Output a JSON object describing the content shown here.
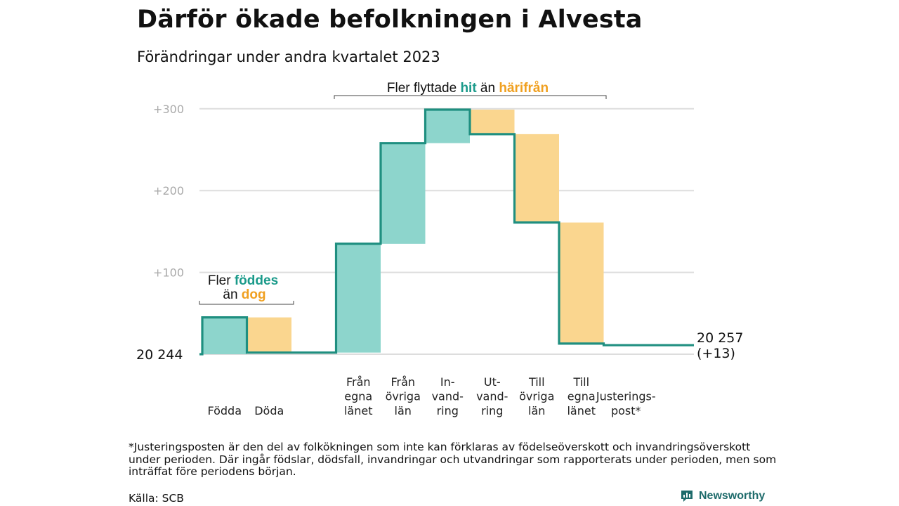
{
  "title": "Därför ökade befolkningen i Alvesta",
  "subtitle": "Förändringar under andra kvartalet 2023",
  "footnote": "*Justeringsposten är den del av folkökningen som inte kan förklaras av födelseöverskott och invandringsöverskott under perioden. Där ingår födslar, dödsfall, invandringar och utvandringar som rapporterats under perioden, men som inträffat före periodens början.",
  "source": "Källa: SCB",
  "brand": "Newsworthy",
  "colors": {
    "positive": "#8dd5cc",
    "negative": "#fad68f",
    "line": "#1f8f80",
    "hit": "#1a9a8a",
    "dog": "#f0a020",
    "grid": "#dddddd",
    "axis": "#aaaaaa"
  },
  "annotations": {
    "birth": {
      "line1_pre": "Fler ",
      "line1_em": "föddes",
      "line2_pre": "än ",
      "line2_em": "dog"
    },
    "migration": {
      "pre": "Fler flyttade ",
      "em1": "hit",
      "mid": " än ",
      "em2": "härifrån"
    }
  },
  "chart_data": {
    "type": "waterfall",
    "start_label": "20 244",
    "end_label": "20 257",
    "end_change": "(+13)",
    "yticks": [
      {
        "value": 100,
        "label": "+100"
      },
      {
        "value": 200,
        "label": "+200"
      },
      {
        "value": 300,
        "label": "+300"
      }
    ],
    "ylim": [
      0,
      300
    ],
    "steps": [
      {
        "lines": [
          "Födda"
        ],
        "change": 45,
        "slot": 0
      },
      {
        "lines": [
          "Döda"
        ],
        "change": -43,
        "slot": 1
      },
      {
        "lines": [
          "Från",
          "egna",
          "länet"
        ],
        "change": 133,
        "slot": 3
      },
      {
        "lines": [
          "Från",
          "övriga",
          "län"
        ],
        "change": 123,
        "slot": 4
      },
      {
        "lines": [
          "In-",
          "vand-",
          "ring"
        ],
        "change": 41,
        "slot": 5
      },
      {
        "lines": [
          "Ut-",
          "vand-",
          "ring"
        ],
        "change": -30,
        "slot": 6
      },
      {
        "lines": [
          "Till",
          "övriga",
          "län"
        ],
        "change": -108,
        "slot": 7
      },
      {
        "lines": [
          "Till",
          "egna",
          "länet"
        ],
        "change": -148,
        "slot": 8
      },
      {
        "lines": [
          "Justerings-",
          "post*"
        ],
        "change": -2,
        "slot": 9
      }
    ],
    "final_change": 13
  }
}
